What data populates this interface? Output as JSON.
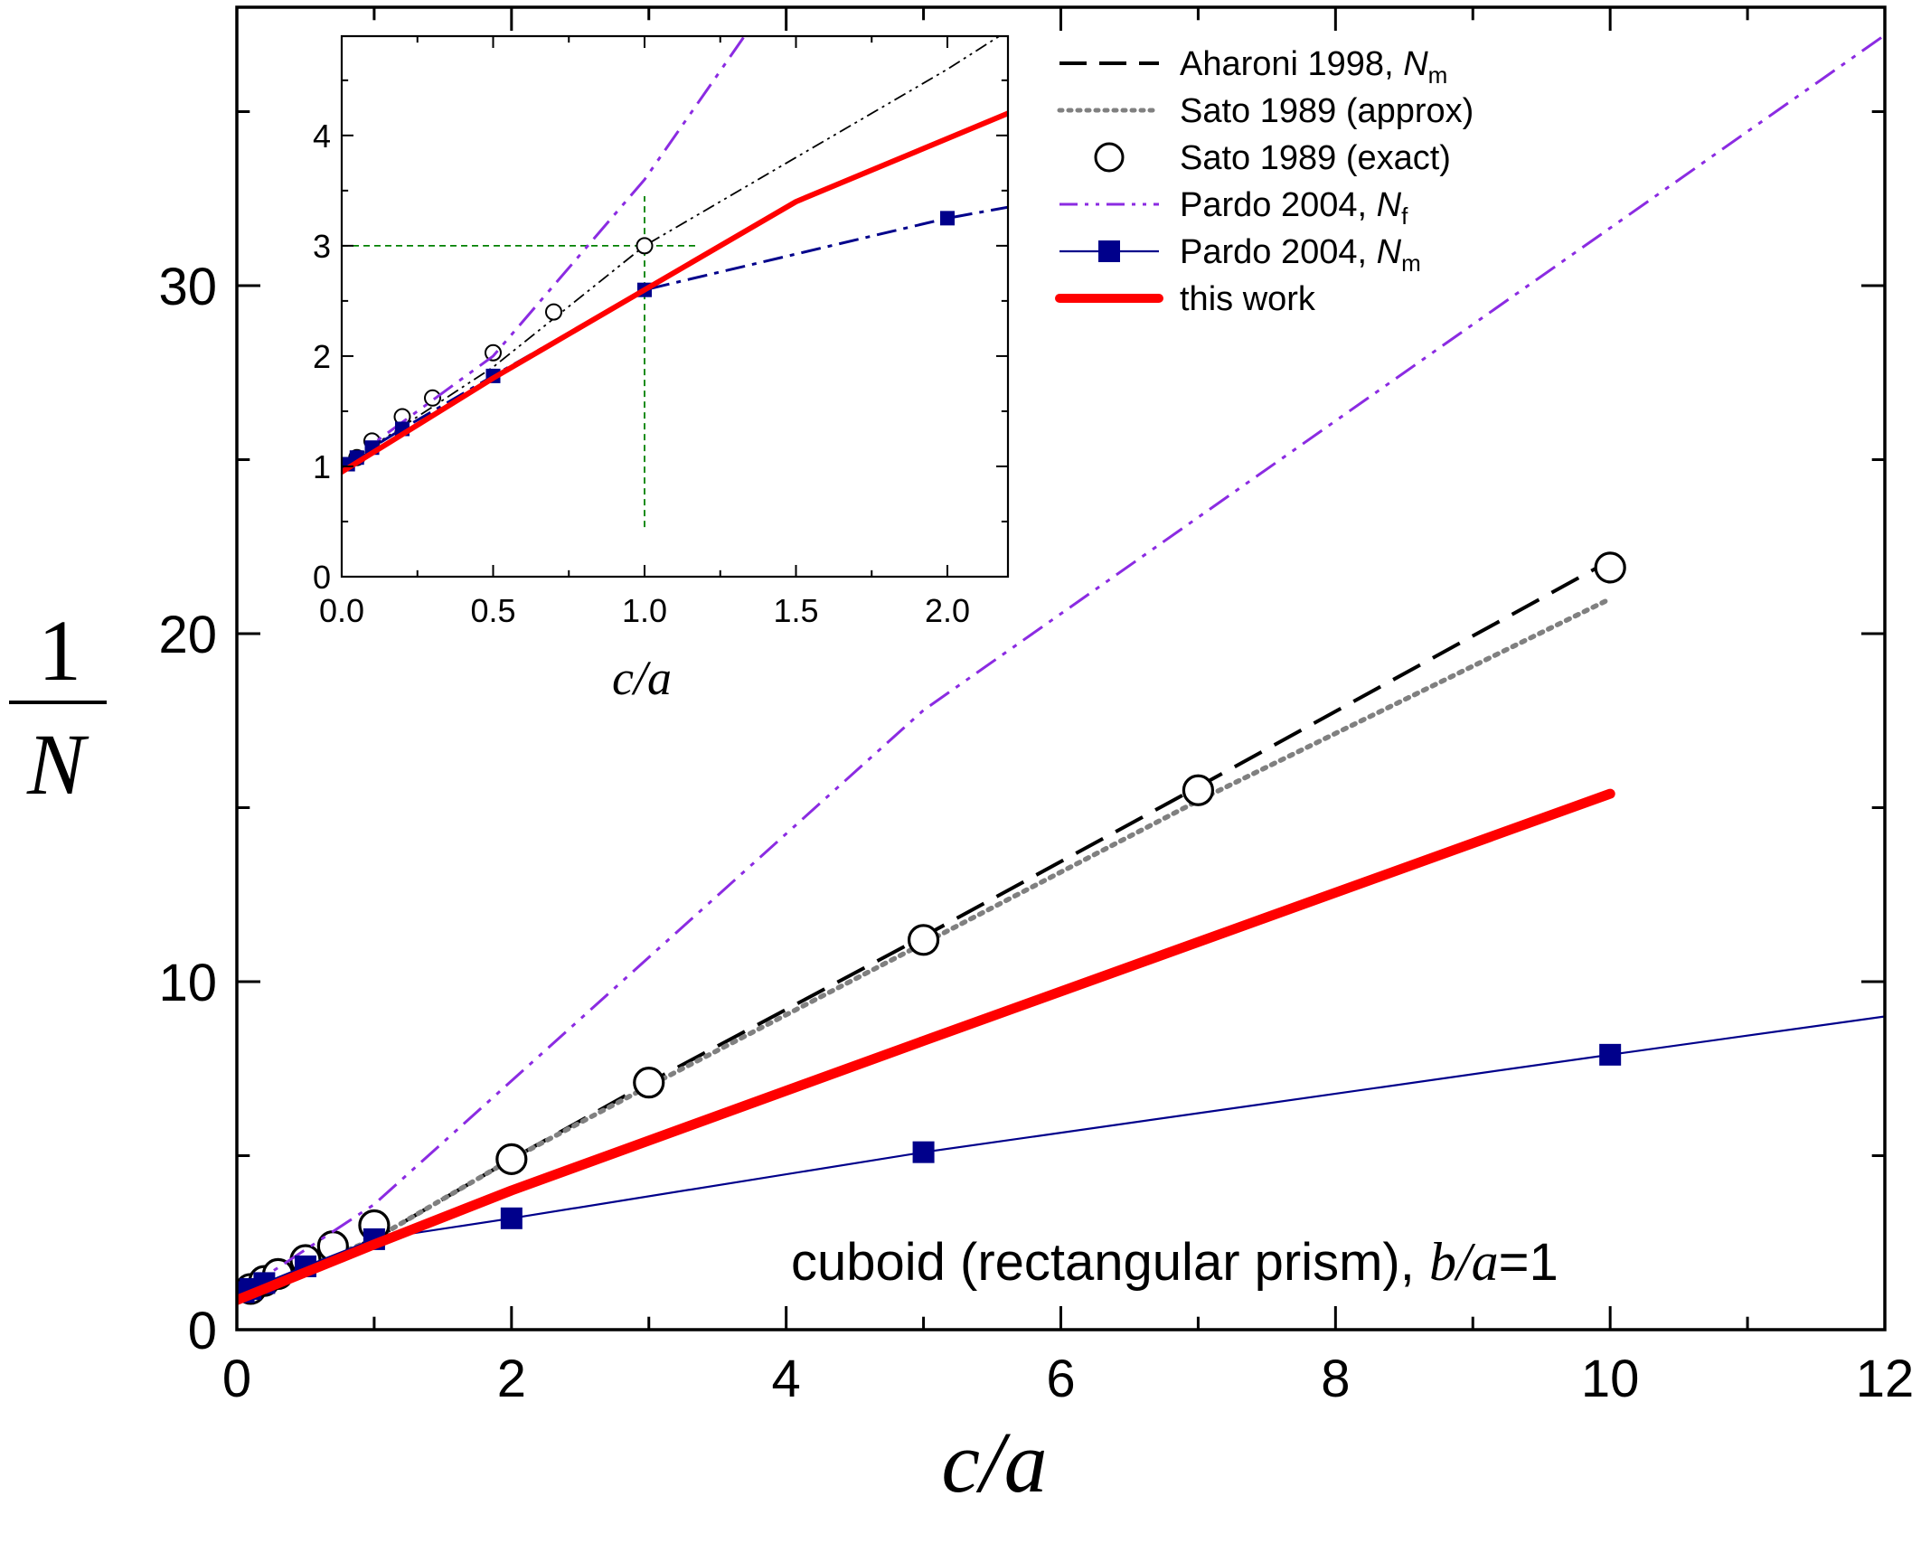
{
  "colors": {
    "aharoni": "#000000",
    "sato_approx": "#808080",
    "sato_exact": "#000000",
    "pardo_f": "#8B2BE2",
    "pardo_m": "#00008B",
    "this_work": "#FF0000",
    "guide": "#008000"
  },
  "chart_data": [
    {
      "id": "main",
      "type": "line",
      "xlabel_var": "c/a",
      "ylabel_num": "1",
      "ylabel_den": "N",
      "xlim": [
        0,
        12
      ],
      "ylim": [
        0,
        38
      ],
      "xticks": [
        0,
        2,
        4,
        6,
        8,
        10,
        12
      ],
      "yticks": [
        0,
        10,
        20,
        30
      ],
      "annotation": {
        "prefix": "cuboid (rectangular prism), ",
        "ratio_var": "b/a",
        "suffix": "=1"
      },
      "series": [
        {
          "name": "Aharoni 1998, Nm",
          "style": "dashed",
          "x": [
            0,
            0.1,
            0.2,
            0.3,
            0.5,
            0.7,
            1,
            2,
            3,
            5,
            7,
            10
          ],
          "y": [
            1,
            1.17,
            1.34,
            1.5,
            1.82,
            2.14,
            2.6,
            4.9,
            7.1,
            11.3,
            15.6,
            22.1
          ]
        },
        {
          "name": "Sato 1989 (approx)",
          "style": "dotted",
          "x": [
            0,
            0.5,
            1,
            2,
            3,
            5,
            7,
            10
          ],
          "y": [
            1,
            1.8,
            2.6,
            4.9,
            7.0,
            11.1,
            15.2,
            21.0
          ]
        },
        {
          "name": "Sato 1989 (exact)",
          "style": "open-circles",
          "x": [
            0.1,
            0.2,
            0.3,
            0.5,
            0.7,
            1,
            2,
            3,
            5,
            7,
            10
          ],
          "y": [
            1.17,
            1.4,
            1.6,
            2.0,
            2.4,
            3.0,
            4.9,
            7.1,
            11.2,
            15.5,
            21.9
          ]
        },
        {
          "name": "Pardo 2004, Nf",
          "style": "dash-dot-dot",
          "x": [
            0,
            1,
            5,
            12
          ],
          "y": [
            1,
            3.6,
            17.8,
            37.2
          ]
        },
        {
          "name": "Pardo 2004, Nm",
          "style": "line-squares",
          "x": [
            0,
            0.05,
            0.1,
            0.2,
            0.5,
            1,
            2,
            5,
            10,
            12
          ],
          "y": [
            1,
            1.08,
            1.17,
            1.34,
            1.82,
            2.6,
            3.2,
            5.1,
            7.9,
            9.0
          ]
        },
        {
          "name": "this work",
          "style": "thick",
          "x": [
            0,
            1,
            2,
            5,
            10
          ],
          "y": [
            0.85,
            2.45,
            4.0,
            8.3,
            15.4
          ]
        }
      ]
    },
    {
      "id": "inset",
      "type": "line",
      "xlabel_var": "c/a",
      "xlim": [
        0,
        2.2
      ],
      "ylim": [
        0,
        4.9
      ],
      "xticks": [
        "0.0",
        "0.5",
        "1.0",
        "1.5",
        "2.0"
      ],
      "yticks": [
        0,
        1,
        2,
        3,
        4
      ],
      "guides": {
        "x": 1.0,
        "y": 3.0
      },
      "series": [
        {
          "name": "Aharoni 1998, Nm",
          "style": "dash-dot-dot-thin",
          "x": [
            0,
            0.5,
            1,
            1.5,
            2,
            2.2
          ],
          "y": [
            1,
            1.9,
            3.0,
            3.8,
            4.6,
            4.95
          ]
        },
        {
          "name": "Sato 1989 (exact)",
          "style": "open-circles",
          "x": [
            0.05,
            0.1,
            0.2,
            0.3,
            0.5,
            0.7,
            1.0
          ],
          "y": [
            1.08,
            1.23,
            1.45,
            1.62,
            2.03,
            2.4,
            3.0
          ]
        },
        {
          "name": "Pardo 2004, Nf",
          "style": "dash-dot-dot",
          "x": [
            0,
            0.5,
            1.0,
            1.33
          ],
          "y": [
            1,
            2.0,
            3.6,
            4.9
          ]
        },
        {
          "name": "Pardo 2004, Nm",
          "style": "dash-dot-squares",
          "x": [
            0.02,
            0.05,
            0.1,
            0.2,
            0.5,
            1.0,
            2.0,
            2.2
          ],
          "y": [
            1.02,
            1.08,
            1.17,
            1.34,
            1.82,
            2.6,
            3.25,
            3.35
          ]
        },
        {
          "name": "this work",
          "style": "thick",
          "x": [
            0,
            0.5,
            1.0,
            1.5,
            2.2
          ],
          "y": [
            0.95,
            1.8,
            2.6,
            3.4,
            4.2
          ]
        }
      ]
    }
  ],
  "legend": [
    {
      "key": "aharoni",
      "text": "Aharoni 1998, ",
      "var": "N",
      "sub": "m"
    },
    {
      "key": "sato_approx",
      "text": "Sato 1989 (approx)",
      "var": "",
      "sub": ""
    },
    {
      "key": "sato_exact",
      "text": "Sato 1989 (exact)",
      "var": "",
      "sub": ""
    },
    {
      "key": "pardo_f",
      "text": "Pardo 2004, ",
      "var": "N",
      "sub": "f"
    },
    {
      "key": "pardo_m",
      "text": "Pardo 2004, ",
      "var": "N",
      "sub": "m"
    },
    {
      "key": "this_work",
      "text": "this work",
      "var": "",
      "sub": ""
    }
  ]
}
